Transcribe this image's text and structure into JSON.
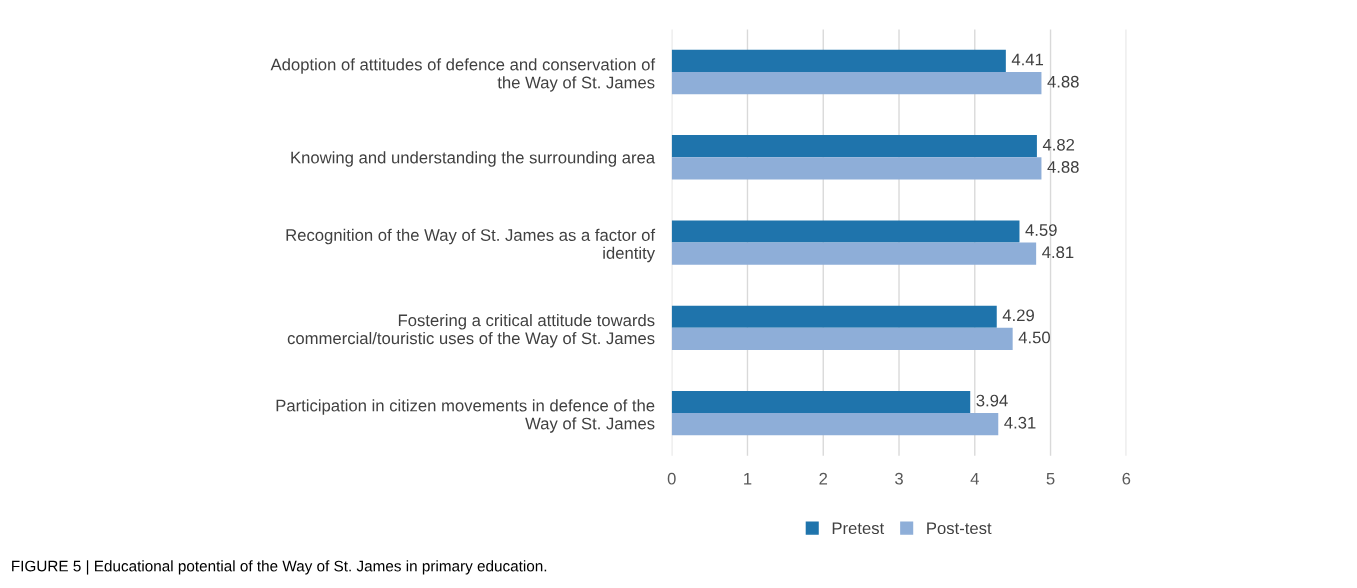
{
  "chart_data": {
    "type": "bar",
    "orientation": "horizontal",
    "categories": [
      "Adoption of attitudes of defence and conservation of\nthe Way of St. James",
      "Knowing and understanding the surrounding area",
      "Recognition of the Way of St. James as a factor of\nidentity",
      "Fostering a critical attitude towards\ncommercial/touristic uses of the Way of St. James",
      "Participation in citizen movements in defence of the\nWay of St. James"
    ],
    "series": [
      {
        "name": "Pretest",
        "color": "#1f74ac",
        "values": [
          4.41,
          4.82,
          4.59,
          4.29,
          3.94
        ],
        "value_labels": [
          "4.41",
          "4.82",
          "4.59",
          "4.29",
          "3.94"
        ]
      },
      {
        "name": "Post-test",
        "color": "#8eaed8",
        "values": [
          4.88,
          4.88,
          4.81,
          4.5,
          4.31
        ],
        "value_labels": [
          "4.88",
          "4.88",
          "4.81",
          "4.50",
          "4.31"
        ]
      }
    ],
    "xlim": [
      0,
      6
    ],
    "xticks": [
      0,
      1,
      2,
      3,
      4,
      5,
      6
    ],
    "grid": "x",
    "legend": "bottom",
    "annotations": [
      "FIGURE 5 | Educational potential of the Way of St. James in primary education."
    ]
  }
}
